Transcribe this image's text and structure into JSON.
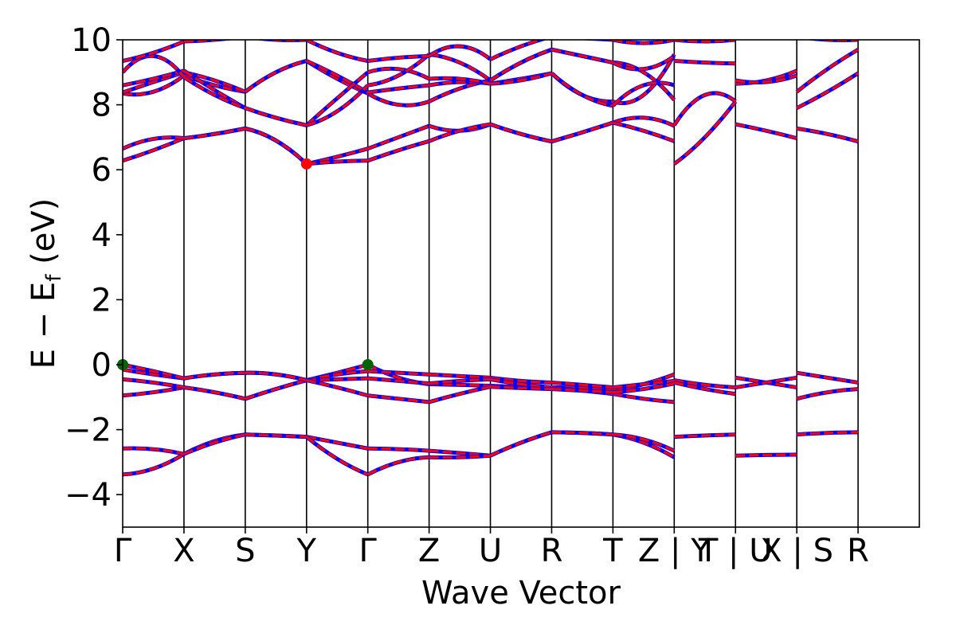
{
  "chart_data": {
    "type": "line",
    "title": "",
    "xlabel": "Wave Vector",
    "ylabel": "E − E",
    "ylabel_sub": "f",
    "ylabel_unit": " (eV)",
    "ylim": [
      -5,
      10
    ],
    "yticks": [
      -4,
      -2,
      0,
      2,
      4,
      6,
      8,
      10
    ],
    "ytick_labels": [
      "−4",
      "−2",
      "0",
      "2",
      "4",
      "6",
      "8",
      "10"
    ],
    "xlim": [
      0,
      13
    ],
    "x_ticks": [
      {
        "x": 0,
        "label": "Γ"
      },
      {
        "x": 1,
        "label": "X"
      },
      {
        "x": 2,
        "label": "S"
      },
      {
        "x": 3,
        "label": "Y"
      },
      {
        "x": 4,
        "label": "Γ"
      },
      {
        "x": 5,
        "label": "Z"
      },
      {
        "x": 6,
        "label": "U"
      },
      {
        "x": 7,
        "label": "R"
      },
      {
        "x": 8,
        "label": "T"
      },
      {
        "x": 9,
        "label": "Z | Y"
      },
      {
        "x": 10,
        "label": "T | U"
      },
      {
        "x": 11,
        "label": "X | S"
      },
      {
        "x": 12,
        "label": "R"
      }
    ],
    "grid": false,
    "colors": {
      "bands_a": "#0000ff",
      "bands_b": "#ff0000",
      "vbm": "#006400",
      "cbm": "#ff0000",
      "separator": "#000000"
    },
    "segments": [
      {
        "x0": 0,
        "x1": 1,
        "bands": [
          [
            -3.38,
            -3.2,
            -2.75
          ],
          [
            -2.58,
            -2.6,
            -2.75
          ],
          [
            -0.95,
            -0.85,
            -0.7
          ],
          [
            -0.45,
            -0.55,
            -0.7
          ],
          [
            -0.15,
            -0.3,
            -0.42
          ],
          [
            0.0,
            -0.2,
            -0.42
          ],
          [
            6.28,
            6.6,
            6.97
          ],
          [
            6.65,
            6.95,
            6.97
          ],
          [
            8.35,
            8.4,
            8.9
          ],
          [
            8.38,
            8.7,
            9.0
          ],
          [
            8.6,
            8.8,
            9.05
          ],
          [
            9.0,
            9.5,
            8.85
          ],
          [
            9.35,
            9.6,
            9.95
          ]
        ]
      },
      {
        "x0": 1,
        "x1": 2,
        "bands": [
          [
            -2.75,
            -2.35,
            -2.15
          ],
          [
            -2.75,
            -2.4,
            -2.15
          ],
          [
            -0.7,
            -0.85,
            -1.05
          ],
          [
            -0.7,
            -0.85,
            -1.05
          ],
          [
            -0.42,
            -0.3,
            -0.25
          ],
          [
            -0.42,
            -0.3,
            -0.25
          ],
          [
            6.97,
            7.1,
            7.27
          ],
          [
            6.97,
            7.1,
            7.27
          ],
          [
            8.9,
            8.6,
            8.4
          ],
          [
            9.0,
            8.75,
            8.4
          ],
          [
            9.05,
            8.45,
            7.9
          ],
          [
            8.85,
            8.3,
            7.9
          ],
          [
            9.95,
            10.0,
            10.1
          ]
        ]
      },
      {
        "x0": 2,
        "x1": 3,
        "bands": [
          [
            -2.15,
            -2.18,
            -2.22
          ],
          [
            -2.15,
            -2.18,
            -2.22
          ],
          [
            -1.05,
            -0.75,
            -0.48
          ],
          [
            -1.05,
            -0.75,
            -0.48
          ],
          [
            -0.25,
            -0.3,
            -0.48
          ],
          [
            -0.25,
            -0.3,
            -0.48
          ],
          [
            7.27,
            6.9,
            6.18
          ],
          [
            7.27,
            6.9,
            6.18
          ],
          [
            8.4,
            9.0,
            9.35
          ],
          [
            8.4,
            9.0,
            9.35
          ],
          [
            7.9,
            7.6,
            7.37
          ],
          [
            7.9,
            7.6,
            7.37
          ],
          [
            10.1,
            10.0,
            10.0
          ]
        ]
      },
      {
        "x0": 3,
        "x1": 4,
        "bands": [
          [
            -2.22,
            -2.4,
            -2.58
          ],
          [
            -2.22,
            -2.9,
            -3.38
          ],
          [
            -0.48,
            -0.25,
            0.0
          ],
          [
            -0.48,
            -0.3,
            -0.2
          ],
          [
            -0.48,
            -0.45,
            -0.42
          ],
          [
            -0.48,
            -0.7,
            -0.95
          ],
          [
            6.18,
            6.4,
            6.65
          ],
          [
            6.18,
            6.25,
            6.28
          ],
          [
            9.35,
            8.8,
            8.35
          ],
          [
            9.35,
            8.9,
            8.38
          ],
          [
            7.37,
            8.2,
            9.0
          ],
          [
            7.37,
            7.8,
            8.6
          ],
          [
            10.0,
            9.6,
            9.35
          ]
        ]
      },
      {
        "x0": 4,
        "x1": 5,
        "bands": [
          [
            -2.58,
            -2.6,
            -2.65
          ],
          [
            -3.38,
            -3.0,
            -2.85
          ],
          [
            0.0,
            -0.4,
            -0.6
          ],
          [
            -0.2,
            -0.25,
            -0.3
          ],
          [
            -0.42,
            -0.5,
            -0.58
          ],
          [
            -0.95,
            -1.05,
            -1.15
          ],
          [
            6.65,
            7.0,
            7.35
          ],
          [
            6.28,
            6.6,
            6.88
          ],
          [
            8.35,
            8.0,
            8.1
          ],
          [
            8.38,
            8.5,
            8.6
          ],
          [
            9.0,
            9.1,
            8.8
          ],
          [
            8.6,
            8.9,
            9.55
          ],
          [
            9.35,
            9.45,
            9.5
          ]
        ]
      },
      {
        "x0": 5,
        "x1": 6,
        "bands": [
          [
            -2.65,
            -2.72,
            -2.8
          ],
          [
            -2.85,
            -2.85,
            -2.8
          ],
          [
            -0.6,
            -0.62,
            -0.65
          ],
          [
            -0.3,
            -0.35,
            -0.4
          ],
          [
            -0.58,
            -0.5,
            -0.45
          ],
          [
            -1.15,
            -0.9,
            -0.68
          ],
          [
            7.35,
            7.2,
            7.4
          ],
          [
            6.88,
            7.2,
            7.4
          ],
          [
            8.1,
            8.5,
            8.75
          ],
          [
            8.6,
            8.7,
            8.65
          ],
          [
            8.8,
            8.8,
            8.65
          ],
          [
            9.55,
            9.3,
            8.75
          ],
          [
            9.5,
            9.8,
            9.4
          ]
        ]
      },
      {
        "x0": 6,
        "x1": 7,
        "bands": [
          [
            -2.8,
            -2.4,
            -2.08
          ],
          [
            -2.8,
            -2.4,
            -2.08
          ],
          [
            -0.65,
            -0.68,
            -0.7
          ],
          [
            -0.4,
            -0.5,
            -0.55
          ],
          [
            -0.45,
            -0.6,
            -0.7
          ],
          [
            -0.68,
            -0.72,
            -0.75
          ],
          [
            7.4,
            7.1,
            6.87
          ],
          [
            7.4,
            7.1,
            6.87
          ],
          [
            8.75,
            9.3,
            9.7
          ],
          [
            8.65,
            8.8,
            8.97
          ],
          [
            8.65,
            8.75,
            8.97
          ],
          [
            8.75,
            9.3,
            9.7
          ],
          [
            9.4,
            9.8,
            10.1
          ]
        ]
      },
      {
        "x0": 7,
        "x1": 8,
        "bands": [
          [
            -2.08,
            -2.1,
            -2.15
          ],
          [
            -2.08,
            -2.1,
            -2.15
          ],
          [
            -0.7,
            -0.72,
            -0.8
          ],
          [
            -0.55,
            -0.62,
            -0.7
          ],
          [
            -0.7,
            -0.8,
            -0.9
          ],
          [
            -0.75,
            -0.8,
            -0.85
          ],
          [
            6.87,
            7.15,
            7.45
          ],
          [
            6.87,
            7.15,
            7.45
          ],
          [
            9.7,
            9.5,
            9.3
          ],
          [
            8.97,
            8.3,
            8.1
          ],
          [
            8.97,
            8.3,
            7.97
          ],
          [
            9.7,
            9.5,
            9.3
          ],
          [
            10.1,
            10.05,
            10.0
          ]
        ]
      },
      {
        "x0": 8,
        "x1": 9,
        "bands": [
          [
            -2.15,
            -2.4,
            -2.85
          ],
          [
            -2.15,
            -2.3,
            -2.65
          ],
          [
            -0.8,
            -0.6,
            -0.3
          ],
          [
            -0.7,
            -0.6,
            -0.5
          ],
          [
            -0.9,
            -1.05,
            -1.15
          ],
          [
            -0.85,
            -0.75,
            -0.58
          ],
          [
            7.45,
            7.6,
            7.35
          ],
          [
            7.45,
            7.2,
            6.88
          ],
          [
            9.3,
            9.0,
            8.15
          ],
          [
            8.1,
            8.3,
            9.55
          ],
          [
            7.97,
            8.6,
            8.6
          ],
          [
            9.3,
            9.1,
            9.5
          ],
          [
            10.0,
            9.9,
            10.0
          ]
        ]
      },
      {
        "x0": 9,
        "x1": 10,
        "bands": [
          [
            -2.22,
            -2.18,
            -2.15
          ],
          [
            -0.48,
            -0.62,
            -0.7
          ],
          [
            -0.55,
            -0.75,
            -0.9
          ],
          [
            6.18,
            7.0,
            8.1
          ],
          [
            7.37,
            8.3,
            8.1
          ],
          [
            9.35,
            9.3,
            9.27
          ],
          [
            10.0,
            9.95,
            10.0
          ]
        ]
      },
      {
        "x0": 10,
        "x1": 11,
        "bands": [
          [
            -2.8,
            -2.78,
            -2.77
          ],
          [
            -0.4,
            -0.55,
            -0.7
          ],
          [
            -0.7,
            -0.55,
            -0.4
          ],
          [
            7.4,
            7.2,
            6.97
          ],
          [
            8.65,
            8.75,
            9.05
          ],
          [
            8.75,
            8.7,
            8.9
          ]
        ]
      },
      {
        "x0": 11,
        "x1": 12,
        "bands": [
          [
            -2.15,
            -2.1,
            -2.08
          ],
          [
            -1.05,
            -0.85,
            -0.75
          ],
          [
            -0.25,
            -0.4,
            -0.55
          ],
          [
            7.27,
            7.1,
            6.87
          ],
          [
            7.9,
            8.4,
            8.97
          ],
          [
            8.4,
            9.1,
            9.7
          ],
          [
            10.1,
            10.0,
            10.0
          ]
        ]
      }
    ],
    "markers": [
      {
        "x": 0,
        "y": 0.0,
        "kind": "vbm"
      },
      {
        "x": 4,
        "y": 0.0,
        "kind": "vbm"
      },
      {
        "x": 3,
        "y": 6.18,
        "kind": "cbm"
      }
    ]
  }
}
